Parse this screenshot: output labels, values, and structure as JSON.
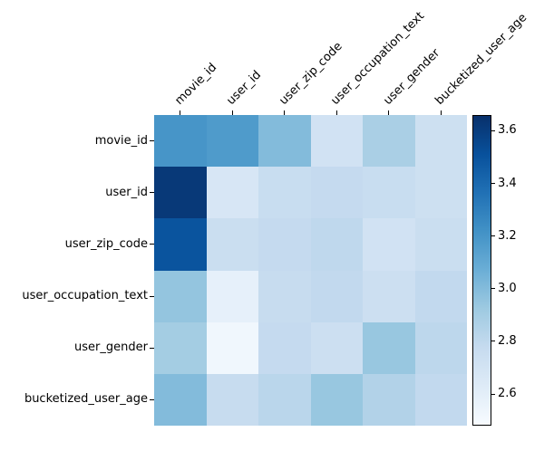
{
  "figure": {
    "background": "#ffffff",
    "text_color": "#000000"
  },
  "chart_data": {
    "type": "heatmap",
    "title": "",
    "xlabel": "",
    "ylabel": "",
    "categories": [
      "movie_id",
      "user_id",
      "user_zip_code",
      "user_occupation_text",
      "user_gender",
      "bucketized_user_age"
    ],
    "x_tick_labels": [
      "movie_id",
      "user_id",
      "user_zip_code",
      "user_occupation_text",
      "user_gender",
      "bucketized_user_age"
    ],
    "y_tick_labels": [
      "movie_id",
      "user_id",
      "user_zip_code",
      "user_occupation_text",
      "user_gender",
      "bucketized_user_age"
    ],
    "matrix": [
      [
        3.2,
        3.17,
        3.0,
        2.71,
        2.88,
        2.73
      ],
      [
        3.62,
        2.67,
        2.76,
        2.78,
        2.76,
        2.73
      ],
      [
        3.5,
        2.75,
        2.78,
        2.8,
        2.71,
        2.75
      ],
      [
        2.95,
        2.58,
        2.77,
        2.79,
        2.74,
        2.79
      ],
      [
        2.9,
        2.52,
        2.78,
        2.74,
        2.94,
        2.81
      ],
      [
        3.0,
        2.77,
        2.82,
        2.94,
        2.85,
        2.79
      ]
    ],
    "vmin": 2.48,
    "vmax": 3.66,
    "colorbar_ticks": [
      3.6,
      3.4,
      3.2,
      3.0,
      2.8,
      2.6
    ],
    "colorbar_position": "right",
    "grid": false,
    "colormap": {
      "name": "Blues",
      "anchors": [
        {
          "t": 0.0,
          "color": "#f7fbff"
        },
        {
          "t": 0.125,
          "color": "#deebf7"
        },
        {
          "t": 0.25,
          "color": "#c6dbef"
        },
        {
          "t": 0.375,
          "color": "#9ecae1"
        },
        {
          "t": 0.5,
          "color": "#6baed6"
        },
        {
          "t": 0.625,
          "color": "#4292c6"
        },
        {
          "t": 0.75,
          "color": "#2171b5"
        },
        {
          "t": 0.875,
          "color": "#08519c"
        },
        {
          "t": 1.0,
          "color": "#08306b"
        }
      ]
    }
  }
}
